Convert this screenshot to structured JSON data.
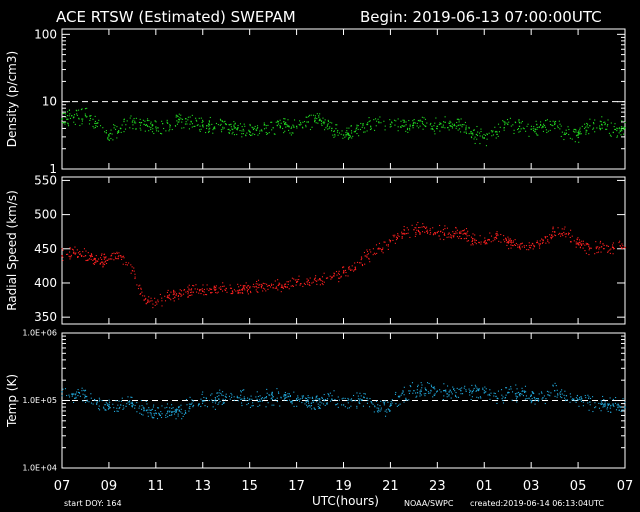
{
  "header": {
    "title": "ACE RTSW (Estimated) SWEPAM",
    "begin": "Begin: 2019-06-13 07:00:00UTC"
  },
  "footer": {
    "start_doy": "start DOY: 164",
    "xlabel": "UTC(hours)",
    "credit": "NOAA/SWPC",
    "created": "created:2019-06-14 06:13:04UTC"
  },
  "x_ticks": [
    "07",
    "09",
    "11",
    "13",
    "15",
    "17",
    "19",
    "21",
    "23",
    "01",
    "03",
    "05",
    "07"
  ],
  "colors": {
    "background": "#000000",
    "axes": "#ffffff",
    "density": "#22dd22",
    "speed": "#ff2020",
    "temp": "#22aadd",
    "reference": "#ffffff"
  },
  "chart_data": [
    {
      "type": "scatter",
      "ylabel": "Density (p/cm3)",
      "yscale": "log",
      "ylim": [
        1,
        120
      ],
      "y_ticks": [
        "1",
        "10",
        "100"
      ],
      "reference_line": 10,
      "series_color": "density",
      "xlim_hours": [
        0,
        24
      ],
      "points": [
        [
          0.0,
          5.5
        ],
        [
          0.5,
          5.9
        ],
        [
          1.0,
          6.2
        ],
        [
          1.5,
          4.8
        ],
        [
          2.0,
          3.1
        ],
        [
          2.5,
          4.0
        ],
        [
          3.0,
          5.0
        ],
        [
          3.5,
          4.6
        ],
        [
          4.0,
          4.2
        ],
        [
          4.5,
          4.8
        ],
        [
          5.0,
          5.4
        ],
        [
          5.5,
          5.1
        ],
        [
          6.0,
          4.5
        ],
        [
          6.5,
          4.2
        ],
        [
          7.0,
          4.6
        ],
        [
          7.5,
          4.1
        ],
        [
          8.0,
          3.6
        ],
        [
          8.5,
          3.8
        ],
        [
          9.0,
          4.1
        ],
        [
          9.5,
          4.6
        ],
        [
          10.0,
          4.3
        ],
        [
          10.5,
          5.0
        ],
        [
          11.0,
          5.3
        ],
        [
          11.5,
          4.0
        ],
        [
          12.0,
          3.2
        ],
        [
          12.5,
          3.6
        ],
        [
          13.0,
          4.6
        ],
        [
          13.5,
          5.0
        ],
        [
          14.0,
          4.6
        ],
        [
          14.5,
          4.4
        ],
        [
          15.0,
          4.9
        ],
        [
          15.5,
          4.3
        ],
        [
          16.0,
          4.3
        ],
        [
          16.5,
          4.8
        ],
        [
          17.0,
          4.5
        ],
        [
          17.5,
          3.4
        ],
        [
          18.0,
          2.9
        ],
        [
          18.5,
          3.6
        ],
        [
          19.0,
          4.6
        ],
        [
          19.5,
          4.3
        ],
        [
          20.0,
          3.9
        ],
        [
          20.5,
          4.2
        ],
        [
          21.0,
          4.6
        ],
        [
          21.5,
          3.4
        ],
        [
          22.0,
          3.2
        ],
        [
          22.5,
          4.4
        ],
        [
          23.0,
          4.6
        ],
        [
          23.5,
          3.5
        ],
        [
          24.0,
          4.1
        ]
      ]
    },
    {
      "type": "scatter",
      "ylabel": "Radial Speed (km/s)",
      "yscale": "linear",
      "ylim": [
        340,
        555
      ],
      "y_ticks": [
        "350",
        "400",
        "450",
        "500",
        "550"
      ],
      "series_color": "speed",
      "xlim_hours": [
        0,
        24
      ],
      "points": [
        [
          0.0,
          440
        ],
        [
          0.5,
          445
        ],
        [
          1.0,
          440
        ],
        [
          1.5,
          432
        ],
        [
          2.0,
          435
        ],
        [
          2.5,
          440
        ],
        [
          3.0,
          418
        ],
        [
          3.5,
          375
        ],
        [
          4.0,
          372
        ],
        [
          4.5,
          381
        ],
        [
          5.0,
          385
        ],
        [
          5.5,
          390
        ],
        [
          6.0,
          388
        ],
        [
          6.5,
          390
        ],
        [
          7.0,
          392
        ],
        [
          7.5,
          389
        ],
        [
          8.0,
          393
        ],
        [
          8.5,
          395
        ],
        [
          9.0,
          393
        ],
        [
          9.5,
          398
        ],
        [
          10.0,
          401
        ],
        [
          10.5,
          404
        ],
        [
          11.0,
          405
        ],
        [
          11.5,
          408
        ],
        [
          12.0,
          415
        ],
        [
          12.5,
          423
        ],
        [
          13.0,
          438
        ],
        [
          13.5,
          450
        ],
        [
          14.0,
          462
        ],
        [
          14.5,
          472
        ],
        [
          15.0,
          478
        ],
        [
          15.5,
          480
        ],
        [
          16.0,
          474
        ],
        [
          16.5,
          473
        ],
        [
          17.0,
          473
        ],
        [
          17.5,
          465
        ],
        [
          18.0,
          460
        ],
        [
          18.5,
          467
        ],
        [
          19.0,
          460
        ],
        [
          19.5,
          452
        ],
        [
          20.0,
          455
        ],
        [
          20.5,
          463
        ],
        [
          21.0,
          475
        ],
        [
          21.5,
          472
        ],
        [
          22.0,
          458
        ],
        [
          22.5,
          451
        ],
        [
          23.0,
          453
        ],
        [
          23.5,
          452
        ],
        [
          24.0,
          452
        ]
      ]
    },
    {
      "type": "scatter",
      "ylabel": "Temp (K)",
      "yscale": "log",
      "ylim": [
        10000,
        1000000
      ],
      "y_ticks": [
        "1.0E+04",
        "1.0E+05",
        "1.0E+06"
      ],
      "reference_line": 100000,
      "series_color": "temp",
      "xlim_hours": [
        0,
        24
      ],
      "points": [
        [
          0.0,
          135000
        ],
        [
          0.5,
          125000
        ],
        [
          1.0,
          115000
        ],
        [
          1.5,
          95000
        ],
        [
          2.0,
          82000
        ],
        [
          2.5,
          86000
        ],
        [
          3.0,
          90000
        ],
        [
          3.5,
          72000
        ],
        [
          4.0,
          65000
        ],
        [
          4.5,
          68000
        ],
        [
          5.0,
          70000
        ],
        [
          5.5,
          88000
        ],
        [
          6.0,
          98000
        ],
        [
          6.5,
          100000
        ],
        [
          7.0,
          112000
        ],
        [
          7.5,
          110000
        ],
        [
          8.0,
          105000
        ],
        [
          8.5,
          106000
        ],
        [
          9.0,
          114000
        ],
        [
          9.5,
          108000
        ],
        [
          10.0,
          102000
        ],
        [
          10.5,
          98000
        ],
        [
          11.0,
          95000
        ],
        [
          11.5,
          105000
        ],
        [
          12.0,
          86000
        ],
        [
          12.5,
          100000
        ],
        [
          13.0,
          108000
        ],
        [
          13.5,
          72000
        ],
        [
          14.0,
          85000
        ],
        [
          14.5,
          128000
        ],
        [
          15.0,
          140000
        ],
        [
          15.5,
          145000
        ],
        [
          16.0,
          138000
        ],
        [
          16.5,
          134000
        ],
        [
          17.0,
          140000
        ],
        [
          17.5,
          136000
        ],
        [
          18.0,
          130000
        ],
        [
          18.5,
          115000
        ],
        [
          19.0,
          130000
        ],
        [
          19.5,
          122000
        ],
        [
          20.0,
          118000
        ],
        [
          20.5,
          110000
        ],
        [
          21.0,
          140000
        ],
        [
          21.5,
          118000
        ],
        [
          22.0,
          102000
        ],
        [
          22.5,
          95000
        ],
        [
          23.0,
          88000
        ],
        [
          23.5,
          85000
        ],
        [
          24.0,
          80000
        ]
      ]
    }
  ]
}
